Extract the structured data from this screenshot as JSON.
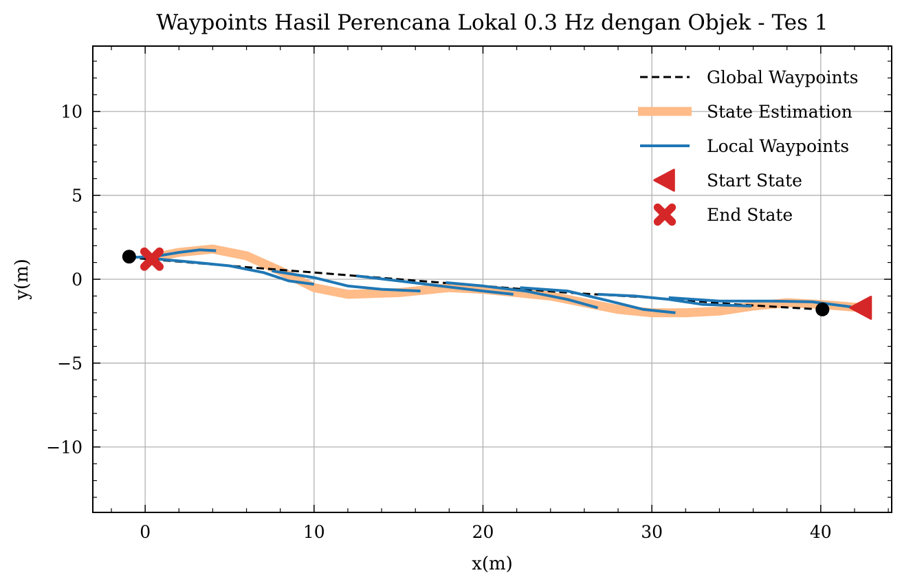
{
  "chart_data": {
    "type": "line",
    "title": "Waypoints Hasil Perencana Lokal 0.3 Hz dengan Objek - Tes 1",
    "xlabel": "x(m)",
    "ylabel": "y(m)",
    "xlim": [
      -3.1,
      44.2
    ],
    "ylim": [
      -13.9,
      13.9
    ],
    "xticks": [
      0,
      10,
      20,
      30,
      40
    ],
    "yticks": [
      -10,
      -5,
      0,
      5,
      10
    ],
    "xtick_labels": [
      "0",
      "10",
      "20",
      "30",
      "40"
    ],
    "ytick_labels": [
      "−10",
      "−5",
      "0",
      "5",
      "10"
    ],
    "grid": true,
    "legend_position": "top-right",
    "series": [
      {
        "name": "Global Waypoints",
        "kind": "line",
        "style": "dashed",
        "color": "#000000",
        "x": [
          -1,
          5,
          10,
          15,
          20,
          25,
          30,
          35,
          40
        ],
        "y": [
          1.3,
          0.8,
          0.4,
          0.0,
          -0.4,
          -0.8,
          -1.1,
          -1.5,
          -1.8
        ]
      },
      {
        "name": "State Estimation",
        "kind": "line",
        "style": "thick",
        "color": "#ffbb88",
        "x": [
          0.5,
          2,
          4,
          6,
          8,
          10,
          12,
          15,
          18,
          20,
          22,
          24,
          26,
          28,
          30,
          32,
          34,
          36,
          38,
          40,
          42.5
        ],
        "y": [
          1.3,
          1.6,
          1.8,
          1.4,
          0.5,
          -0.5,
          -0.9,
          -0.8,
          -0.5,
          -0.6,
          -0.8,
          -1.0,
          -1.4,
          -1.8,
          -2.0,
          -2.0,
          -1.9,
          -1.6,
          -1.4,
          -1.5,
          -1.7
        ]
      },
      {
        "name": "Local Waypoints",
        "kind": "segments",
        "style": "solid",
        "color": "#1f77b4",
        "segments": [
          {
            "x": [
              -0.9,
              0.5,
              2,
              3.2,
              4.2
            ],
            "y": [
              1.3,
              1.35,
              1.6,
              1.75,
              1.7
            ]
          },
          {
            "x": [
              0.8,
              3,
              5,
              7,
              8.5,
              10
            ],
            "y": [
              1.2,
              1.0,
              0.8,
              0.4,
              -0.1,
              -0.3
            ]
          },
          {
            "x": [
              7.5,
              10,
              12,
              14,
              16.3
            ],
            "y": [
              0.5,
              0.1,
              -0.4,
              -0.6,
              -0.7
            ]
          },
          {
            "x": [
              12.5,
              15,
              17.5,
              20,
              21.8
            ],
            "y": [
              0.2,
              -0.1,
              -0.4,
              -0.7,
              -0.9
            ]
          },
          {
            "x": [
              17.8,
              20,
              22.5,
              25,
              26.8
            ],
            "y": [
              -0.2,
              -0.4,
              -0.7,
              -1.2,
              -1.7
            ]
          },
          {
            "x": [
              22.2,
              25,
              27.5,
              29.5,
              31.4
            ],
            "y": [
              -0.5,
              -0.7,
              -1.3,
              -1.8,
              -2.0
            ]
          },
          {
            "x": [
              26.8,
              29,
              31,
              33,
              35.9
            ],
            "y": [
              -0.9,
              -1.0,
              -1.2,
              -1.5,
              -1.6
            ]
          },
          {
            "x": [
              31,
              34,
              37,
              39.5,
              41.8
            ],
            "y": [
              -1.1,
              -1.3,
              -1.3,
              -1.35,
              -1.65
            ]
          }
        ]
      },
      {
        "name": "Start State",
        "kind": "marker",
        "marker": "triangle-left",
        "color": "#d62728",
        "x": [
          42.4
        ],
        "y": [
          -1.7
        ]
      },
      {
        "name": "End State",
        "kind": "marker",
        "marker": "x-filled",
        "color": "#d62728",
        "x": [
          0.4
        ],
        "y": [
          1.2
        ]
      },
      {
        "name": "",
        "kind": "marker",
        "marker": "circle",
        "color": "#000000",
        "x": [
          -0.95,
          40.1
        ],
        "y": [
          1.35,
          -1.8
        ]
      }
    ]
  }
}
